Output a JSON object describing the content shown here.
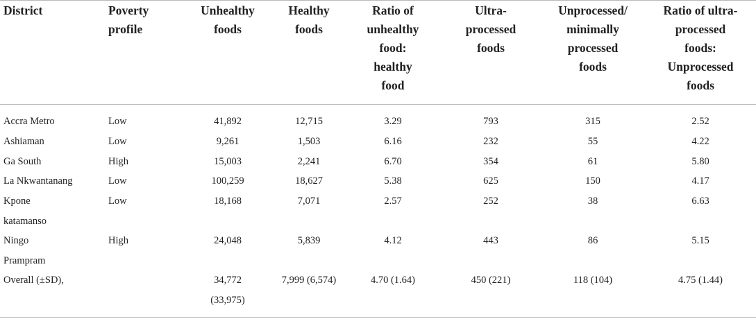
{
  "table": {
    "headers": [
      "District",
      "Poverty\nprofile",
      "Unhealthy\nfoods",
      "Healthy\nfoods",
      "Ratio of\nunhealthy\nfood:\nhealthy\nfood",
      "Ultra-\nprocessed\nfoods",
      "Unprocessed/\nminimally\nprocessed\nfoods",
      "Ratio of ultra-\nprocessed\nfoods:\nUnprocessed\nfoods"
    ],
    "rows": [
      [
        "Accra Metro",
        "Low",
        "41,892",
        "12,715",
        "3.29",
        "793",
        "315",
        "2.52"
      ],
      [
        "Ashiaman",
        "Low",
        "9,261",
        "1,503",
        "6.16",
        "232",
        "55",
        "4.22"
      ],
      [
        "Ga South",
        "High",
        "15,003",
        "2,241",
        "6.70",
        "354",
        "61",
        "5.80"
      ],
      [
        "La Nkwantanang",
        "Low",
        "100,259",
        "18,627",
        "5.38",
        "625",
        "150",
        "4.17"
      ],
      [
        "Kpone\nkatamanso",
        "Low",
        "18,168",
        "7,071",
        "2.57",
        "252",
        "38",
        "6.63"
      ],
      [
        "Ningo\nPrampram",
        "High",
        "24,048",
        "5,839",
        "4.12",
        "443",
        "86",
        "5.15"
      ],
      [
        "Overall (±SD),",
        "",
        "34,772\n(33,975)",
        "7,999 (6,574)",
        "4.70 (1.64)",
        "450 (221)",
        "118 (104)",
        "4.75 (1.44)"
      ]
    ]
  }
}
